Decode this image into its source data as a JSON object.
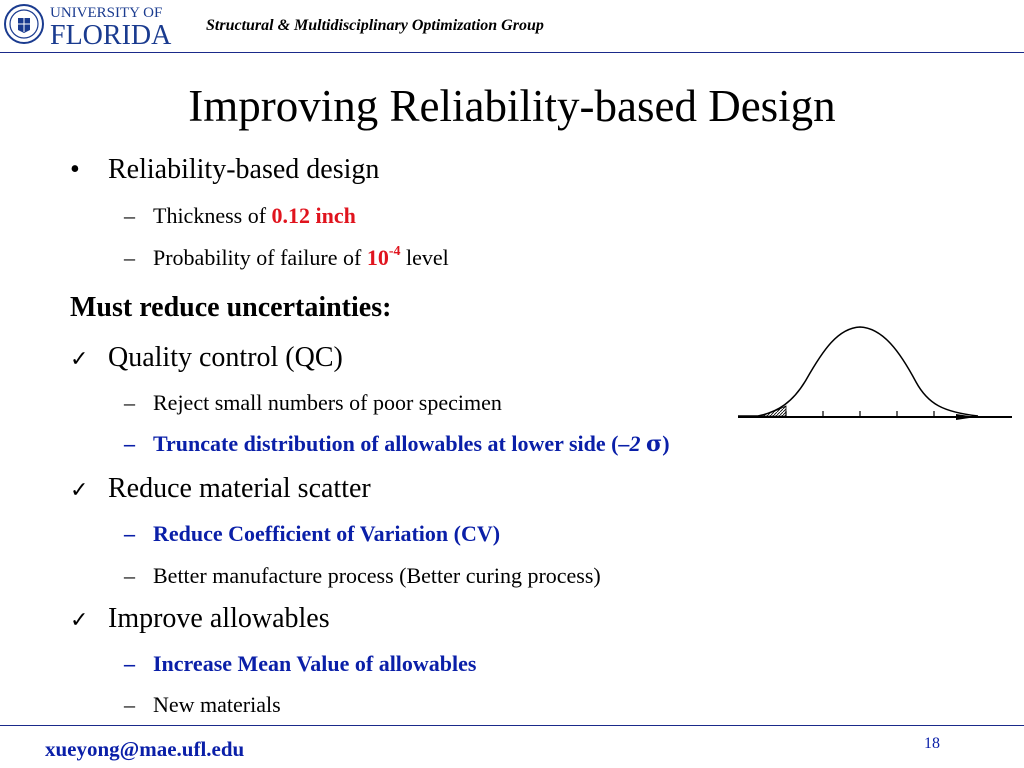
{
  "header": {
    "logo_lines": [
      "UNIVERSITY OF",
      "FLORIDA"
    ],
    "group": "Structural & Multidisciplinary Optimization Group"
  },
  "title": "Improving Reliability-based Design",
  "bullets": {
    "b1": {
      "mark": "•",
      "text": "Reliability-based design"
    },
    "b1_1": {
      "mark": "–",
      "prefix": "Thickness of ",
      "value": "0.12 inch"
    },
    "b1_2": {
      "mark": "–",
      "prefix": "Probability of failure of ",
      "base": "10",
      "exp": "-4",
      "suffix": " level"
    },
    "heading": "Must reduce uncertainties:",
    "c1": {
      "text": "Quality control (QC)"
    },
    "c1_1": {
      "mark": "–",
      "text": "Reject small numbers of poor specimen"
    },
    "c1_2": {
      "mark": "–",
      "text": "Truncate distribution of allowables at lower side (",
      "italic": "–2 ",
      "sigma": "σ",
      "close": ")"
    },
    "c2": {
      "text": "Reduce material scatter"
    },
    "c2_1": {
      "mark": "–",
      "text": "Reduce Coefficient of Variation (CV)"
    },
    "c2_2": {
      "mark": "–",
      "text": "Better manufacture process (Better curing process)"
    },
    "c3": {
      "text": "Improve allowables"
    },
    "c3_1": {
      "mark": "–",
      "text": "Increase Mean Value of allowables"
    },
    "c3_2": {
      "mark": "–",
      "text": "New materials"
    }
  },
  "check_mark": "✓",
  "figure": {
    "icon": "normal-distribution-curve-truncated-left-tail"
  },
  "colors": {
    "accent_red": "#e0141e",
    "accent_blue": "#0a1fa8",
    "rule": "#1a2a8a",
    "logo_blue": "#1a3b8f"
  },
  "footer": {
    "email": "xueyong@mae.ufl.edu",
    "page": "18"
  }
}
